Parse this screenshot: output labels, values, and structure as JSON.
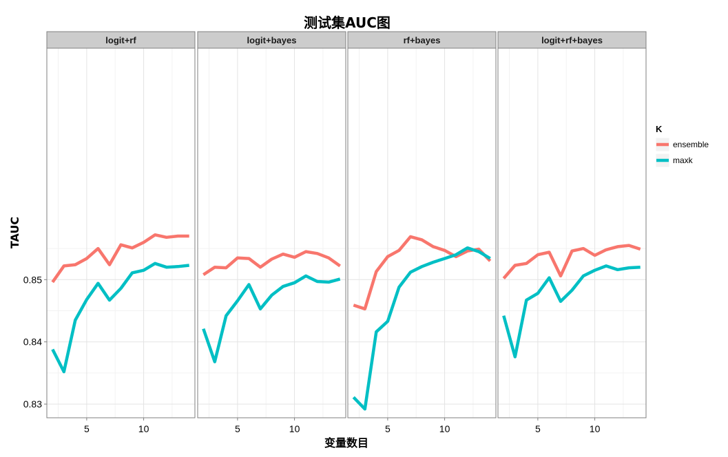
{
  "chart_data": {
    "type": "line",
    "title": "测试集AUC图",
    "xlabel": "变量数目",
    "ylabel": "TAUC",
    "xlim": [
      1.5,
      14.5
    ],
    "ylim": [
      0.8278,
      0.8872
    ],
    "x_ticks": [
      5,
      10
    ],
    "x_tick_labels": [
      "5",
      "10"
    ],
    "y_ticks": [
      0.83,
      0.84,
      0.85
    ],
    "y_tick_labels": [
      "0.83",
      "0.84",
      "0.85"
    ],
    "grid": true,
    "legend": {
      "title": "K",
      "position": "right",
      "entries": [
        {
          "label": "ensemble",
          "color": "#F8766D"
        },
        {
          "label": "maxk",
          "color": "#00BFC4"
        }
      ]
    },
    "x": [
      2,
      3,
      4,
      5,
      6,
      7,
      8,
      9,
      10,
      11,
      12,
      13,
      14
    ],
    "panels": [
      {
        "label": "logit+rf",
        "series": [
          {
            "name": "ensemble",
            "color": "#F8766D",
            "values": [
              0.8496,
              0.8522,
              0.8524,
              0.8534,
              0.855,
              0.8524,
              0.8556,
              0.8551,
              0.856,
              0.8572,
              0.8568,
              0.857,
              0.857
            ]
          },
          {
            "name": "maxk",
            "color": "#00BFC4",
            "values": [
              0.8388,
              0.8352,
              0.8435,
              0.8468,
              0.8494,
              0.8467,
              0.8486,
              0.8511,
              0.8515,
              0.8526,
              0.852,
              0.8521,
              0.8523
            ]
          }
        ]
      },
      {
        "label": "logit+bayes",
        "series": [
          {
            "name": "ensemble",
            "color": "#F8766D",
            "values": [
              0.8508,
              0.852,
              0.8519,
              0.8535,
              0.8534,
              0.852,
              0.8533,
              0.8541,
              0.8536,
              0.8545,
              0.8542,
              0.8535,
              0.8522
            ]
          },
          {
            "name": "maxk",
            "color": "#00BFC4",
            "values": [
              0.8421,
              0.8368,
              0.8442,
              0.8466,
              0.8492,
              0.8453,
              0.8475,
              0.8489,
              0.8495,
              0.8506,
              0.8497,
              0.8496,
              0.8501
            ]
          }
        ]
      },
      {
        "label": "rf+bayes",
        "series": [
          {
            "name": "ensemble",
            "color": "#F8766D",
            "values": [
              0.8459,
              0.8453,
              0.8513,
              0.8537,
              0.8547,
              0.8569,
              0.8564,
              0.8553,
              0.8547,
              0.8537,
              0.8546,
              0.8549,
              0.853
            ]
          },
          {
            "name": "maxk",
            "color": "#00BFC4",
            "values": [
              0.8311,
              0.8292,
              0.8416,
              0.8433,
              0.8488,
              0.8512,
              0.8521,
              0.8528,
              0.8534,
              0.854,
              0.8551,
              0.8545,
              0.8534
            ]
          }
        ]
      },
      {
        "label": "logit+rf+bayes",
        "series": [
          {
            "name": "ensemble",
            "color": "#F8766D",
            "values": [
              0.8502,
              0.8523,
              0.8526,
              0.854,
              0.8544,
              0.8506,
              0.8546,
              0.855,
              0.8539,
              0.8548,
              0.8553,
              0.8555,
              0.8549
            ]
          },
          {
            "name": "maxk",
            "color": "#00BFC4",
            "values": [
              0.8442,
              0.8376,
              0.8467,
              0.8478,
              0.8503,
              0.8465,
              0.8483,
              0.8506,
              0.8515,
              0.8522,
              0.8516,
              0.8519,
              0.852
            ]
          }
        ]
      }
    ]
  }
}
